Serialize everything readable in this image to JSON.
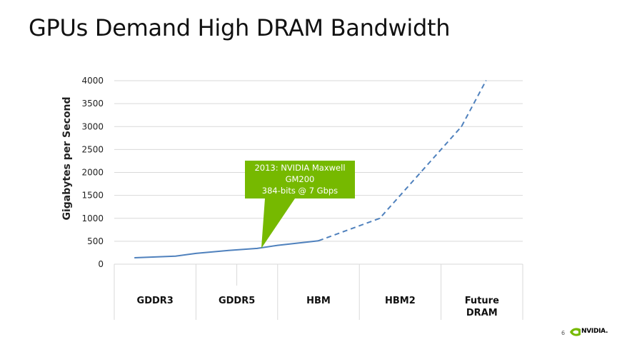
{
  "slide": {
    "title": "GPUs Demand High DRAM Bandwidth",
    "page_number": "6",
    "logo_text": "NVIDIA."
  },
  "colors": {
    "line": "#4f81bd",
    "callout": "#76b900",
    "grid": "#d9d9d9"
  },
  "chart_data": {
    "type": "line",
    "title": "",
    "ylabel": "Gigabytes per Second",
    "xlabel": "",
    "ylim": [
      0,
      4000
    ],
    "yticks": [
      0,
      500,
      1000,
      1500,
      2000,
      2500,
      3000,
      3500,
      4000
    ],
    "grid": true,
    "categories": [
      "GDDR3",
      "GDDR5",
      "HBM",
      "HBM2",
      "Future DRAM"
    ],
    "series": [
      {
        "style": "solid",
        "points": [
          {
            "category": "GDDR3",
            "position": 0.25,
            "value": 140
          },
          {
            "category": "GDDR3",
            "position": 0.75,
            "value": 175
          },
          {
            "category": "GDDR5",
            "position": 0.0,
            "value": 235
          },
          {
            "category": "GDDR5",
            "position": 0.4,
            "value": 300
          },
          {
            "category": "GDDR5",
            "position": 0.75,
            "value": 345
          },
          {
            "category": "HBM",
            "position": 0.0,
            "value": 410
          },
          {
            "category": "HBM",
            "position": 0.5,
            "value": 510
          }
        ]
      },
      {
        "style": "dashed",
        "points": [
          {
            "category": "HBM",
            "position": 0.5,
            "value": 510
          },
          {
            "category": "HBM2",
            "position": 0.25,
            "value": 1000
          },
          {
            "category": "HBM2",
            "position": 0.75,
            "value": 2000
          },
          {
            "category": "Future DRAM",
            "position": 0.25,
            "value": 3000
          },
          {
            "category": "Future DRAM",
            "position": 0.55,
            "value": 4000
          }
        ]
      }
    ],
    "annotations": [
      {
        "lines": [
          "2013: NVIDIA Maxwell",
          "GM200",
          "384-bits @ 7 Gbps"
        ],
        "category": "GDDR5",
        "position": 0.8,
        "value": 345
      }
    ]
  }
}
